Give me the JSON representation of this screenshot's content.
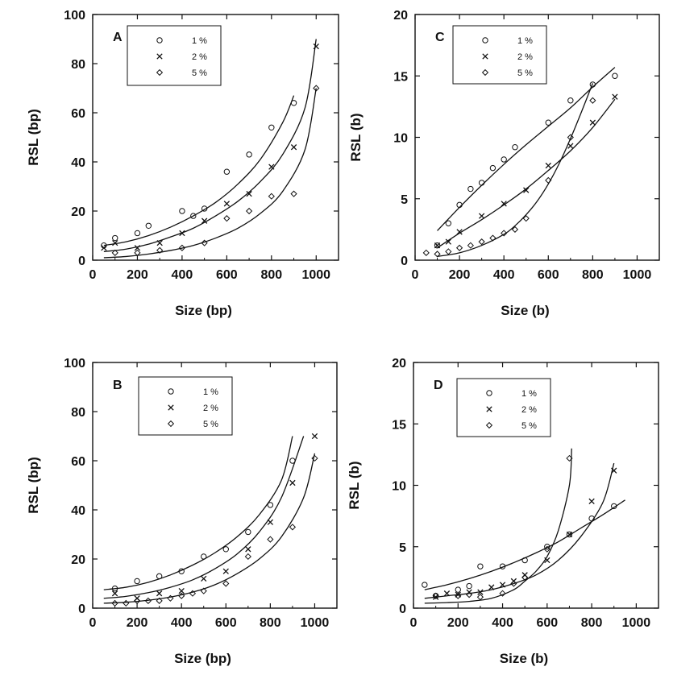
{
  "chart_data": [
    {
      "type": "scatter",
      "panel": "A",
      "xlabel": "Size (bp)",
      "ylabel": "RSL (bp)",
      "xlim": [
        0,
        1100
      ],
      "ylim": [
        0,
        100
      ],
      "xticks": [
        "0",
        "200",
        "400",
        "600",
        "800",
        "1000"
      ],
      "yticks": [
        "0",
        "20",
        "40",
        "60",
        "80",
        "100"
      ],
      "legend": [
        "1 %",
        "2 %",
        "5 %"
      ],
      "series": [
        {
          "name": "1 %",
          "marker": "circle",
          "x": [
            50,
            100,
            200,
            250,
            400,
            450,
            500,
            600,
            700,
            800,
            900
          ],
          "y": [
            6,
            9,
            11,
            14,
            20,
            18,
            21,
            36,
            43,
            54,
            64
          ],
          "fit_x": [
            50,
            150,
            250,
            350,
            450,
            550,
            650,
            750,
            850,
            900
          ],
          "fit_y": [
            6,
            7.5,
            10,
            13.5,
            18,
            23.5,
            31,
            41,
            56,
            67
          ]
        },
        {
          "name": "2 %",
          "marker": "x",
          "x": [
            50,
            100,
            200,
            300,
            400,
            500,
            600,
            700,
            800,
            900,
            1000
          ],
          "y": [
            5,
            7,
            5,
            7,
            11,
            16,
            23,
            27,
            38,
            46,
            87
          ],
          "fit_x": [
            50,
            150,
            250,
            350,
            450,
            550,
            650,
            750,
            850,
            950,
            1000
          ],
          "fit_y": [
            3.5,
            4.5,
            6.5,
            9.5,
            13,
            18,
            24,
            32,
            43,
            62,
            90
          ]
        },
        {
          "name": "5 %",
          "marker": "diamond",
          "x": [
            100,
            200,
            300,
            400,
            500,
            600,
            700,
            800,
            900,
            1000
          ],
          "y": [
            3,
            3,
            4,
            5,
            7,
            17,
            20,
            26,
            27,
            70
          ],
          "fit_x": [
            50,
            150,
            250,
            350,
            450,
            550,
            650,
            750,
            850,
            950,
            1000
          ],
          "fit_y": [
            1,
            1.5,
            2.5,
            4,
            6,
            9,
            13,
            19,
            28,
            45,
            70
          ]
        }
      ]
    },
    {
      "type": "scatter",
      "panel": "C",
      "xlabel": "Size (b)",
      "ylabel": "RSL (b)",
      "xlim": [
        0,
        1100
      ],
      "ylim": [
        0,
        20
      ],
      "xticks": [
        "0",
        "200",
        "400",
        "600",
        "800",
        "1000"
      ],
      "yticks": [
        "0",
        "5",
        "10",
        "15",
        "20"
      ],
      "legend": [
        "1 %",
        "2 %",
        "5 %"
      ],
      "series": [
        {
          "name": "1 %",
          "marker": "circle",
          "x": [
            100,
            150,
            200,
            250,
            300,
            350,
            400,
            450,
            600,
            700,
            800,
            900
          ],
          "y": [
            1.2,
            3,
            4.5,
            5.8,
            6.3,
            7.5,
            8.2,
            9.2,
            11.2,
            13,
            14.3,
            15
          ],
          "fit_x": [
            100,
            200,
            300,
            400,
            500,
            600,
            700,
            800,
            900
          ],
          "fit_y": [
            2.4,
            4.3,
            6.1,
            7.8,
            9.4,
            10.9,
            12.4,
            14.1,
            15.7
          ]
        },
        {
          "name": "2 %",
          "marker": "x",
          "x": [
            100,
            150,
            200,
            300,
            400,
            500,
            600,
            700,
            800,
            900
          ],
          "y": [
            1.2,
            1.5,
            2.3,
            3.6,
            4.6,
            5.7,
            7.7,
            9.3,
            11.2,
            13.3
          ],
          "fit_x": [
            100,
            200,
            300,
            400,
            500,
            600,
            700,
            800,
            900
          ],
          "fit_y": [
            1,
            2.2,
            3.3,
            4.5,
            5.8,
            7.3,
            8.9,
            10.8,
            13.1
          ]
        },
        {
          "name": "5 %",
          "marker": "diamond",
          "x": [
            50,
            100,
            150,
            200,
            250,
            300,
            350,
            400,
            450,
            500,
            600,
            700,
            800
          ],
          "y": [
            0.6,
            0.5,
            0.7,
            1,
            1.2,
            1.5,
            1.8,
            2.2,
            2.5,
            3.4,
            6.5,
            10,
            13
          ],
          "fit_x": [
            100,
            200,
            300,
            400,
            450,
            500,
            550,
            600,
            650,
            700,
            750,
            800
          ],
          "fit_y": [
            0.3,
            0.6,
            1.2,
            2.1,
            2.8,
            3.7,
            4.8,
            6.2,
            7.9,
            9.9,
            12.1,
            14.4
          ]
        }
      ]
    },
    {
      "type": "scatter",
      "panel": "B",
      "xlabel": "Size (bp)",
      "ylabel": "RSL (bp)",
      "xlim": [
        0,
        1100
      ],
      "ylim": [
        0,
        100
      ],
      "xticks": [
        "0",
        "200",
        "400",
        "600",
        "800",
        "1000"
      ],
      "yticks": [
        "0",
        "20",
        "40",
        "60",
        "80",
        "100"
      ],
      "legend": [
        "1 %",
        "2 %",
        "5 %"
      ],
      "series": [
        {
          "name": "1 %",
          "marker": "circle",
          "x": [
            100,
            200,
            300,
            400,
            500,
            600,
            700,
            800,
            900
          ],
          "y": [
            8,
            11,
            13,
            15,
            21,
            24,
            31,
            42,
            60
          ],
          "fit_x": [
            50,
            150,
            250,
            350,
            450,
            550,
            650,
            750,
            850,
            900
          ],
          "fit_y": [
            7.5,
            8.5,
            10.5,
            13.5,
            17.5,
            22.5,
            29,
            38,
            52,
            70
          ]
        },
        {
          "name": "2 %",
          "marker": "x",
          "x": [
            100,
            200,
            300,
            400,
            500,
            600,
            700,
            800,
            900,
            1000
          ],
          "y": [
            6,
            4,
            6,
            7,
            12,
            15,
            24,
            35,
            51,
            70
          ],
          "fit_x": [
            50,
            150,
            250,
            350,
            450,
            550,
            650,
            750,
            850,
            950
          ],
          "fit_y": [
            4,
            4.8,
            6.3,
            8.5,
            11.5,
            16,
            22,
            31,
            45,
            70
          ]
        },
        {
          "name": "5 %",
          "marker": "diamond",
          "x": [
            100,
            150,
            200,
            250,
            300,
            350,
            400,
            450,
            500,
            600,
            700,
            800,
            900,
            1000
          ],
          "y": [
            2,
            2,
            3,
            3,
            3,
            4,
            5,
            6,
            7,
            10,
            21,
            28,
            33,
            61
          ],
          "fit_x": [
            50,
            150,
            250,
            350,
            450,
            550,
            650,
            750,
            850,
            950,
            1000
          ],
          "fit_y": [
            2,
            2.4,
            3.2,
            4.5,
            6.5,
            9.5,
            14,
            20,
            29,
            45,
            63
          ]
        }
      ]
    },
    {
      "type": "scatter",
      "panel": "D",
      "xlabel": "Size (b)",
      "ylabel": "RSL (b)",
      "xlim": [
        0,
        1100
      ],
      "ylim": [
        0,
        20
      ],
      "xticks": [
        "0",
        "200",
        "400",
        "600",
        "800",
        "1000"
      ],
      "yticks": [
        "0",
        "5",
        "10",
        "15",
        "20"
      ],
      "legend": [
        "1 %",
        "2 %",
        "5 %"
      ],
      "series": [
        {
          "name": "1 %",
          "marker": "circle",
          "x": [
            50,
            100,
            200,
            250,
            300,
            400,
            500,
            600,
            700,
            800,
            900
          ],
          "y": [
            1.9,
            1,
            1.5,
            1.8,
            3.4,
            3.4,
            3.9,
            5,
            6,
            7.3,
            8.3
          ],
          "fit_x": [
            50,
            150,
            250,
            350,
            450,
            550,
            650,
            750,
            850,
            950
          ],
          "fit_y": [
            1.5,
            1.9,
            2.4,
            3,
            3.7,
            4.5,
            5.4,
            6.5,
            7.6,
            8.8
          ]
        },
        {
          "name": "2 %",
          "marker": "x",
          "x": [
            100,
            150,
            200,
            250,
            300,
            350,
            400,
            450,
            500,
            600,
            700,
            800,
            900
          ],
          "y": [
            0.9,
            1.2,
            1.1,
            1.3,
            1.3,
            1.7,
            1.9,
            2.2,
            2.7,
            3.9,
            6,
            8.7,
            11.2
          ],
          "fit_x": [
            50,
            150,
            250,
            350,
            450,
            550,
            650,
            750,
            850,
            900
          ],
          "fit_y": [
            0.8,
            1,
            1.2,
            1.5,
            2,
            2.7,
            3.9,
            5.8,
            8.6,
            11.8
          ]
        },
        {
          "name": "5 %",
          "marker": "diamond",
          "x": [
            100,
            200,
            250,
            300,
            400,
            450,
            500,
            600,
            700
          ],
          "y": [
            1,
            1,
            1.1,
            0.9,
            1.2,
            2,
            2.5,
            4.8,
            12.2
          ],
          "fit_x": [
            50,
            150,
            250,
            350,
            450,
            500,
            550,
            600,
            650,
            700,
            710
          ],
          "fit_y": [
            0.4,
            0.45,
            0.55,
            0.8,
            1.5,
            2.2,
            3,
            4.2,
            6.3,
            10,
            13
          ]
        }
      ]
    }
  ]
}
